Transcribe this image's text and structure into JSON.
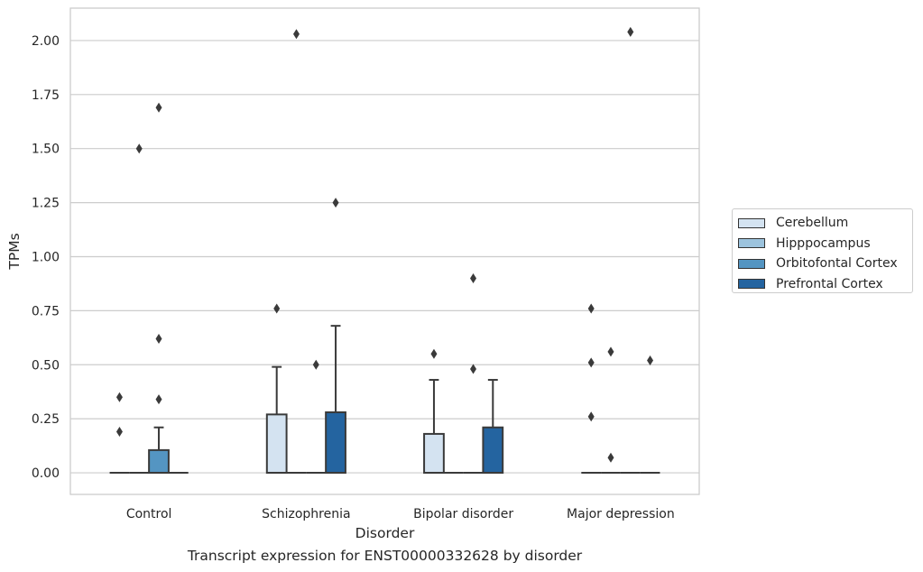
{
  "caption": "Transcript expression for ENST00000332628 by disorder",
  "chart_data": {
    "type": "box",
    "xlabel": "Disorder",
    "ylabel": "TPMs",
    "ylim": [
      -0.1,
      2.15
    ],
    "yticks": [
      0.0,
      0.25,
      0.5,
      0.75,
      1.0,
      1.25,
      1.5,
      1.75,
      2.0
    ],
    "ytick_labels": [
      "0.00",
      "0.25",
      "0.50",
      "0.75",
      "1.00",
      "1.25",
      "1.50",
      "1.75",
      "2.00"
    ],
    "grid": "horizontal",
    "legend_position": "right-center",
    "categories": [
      "Control",
      "Schizophrenia",
      "Bipolar disorder",
      "Major depression"
    ],
    "series": [
      {
        "name": "Cerebellum",
        "color": "#d4e3f1",
        "boxes": [
          {
            "q1": 0,
            "median": 0,
            "q3": 0,
            "whislo": 0,
            "whishi": 0,
            "fliers": [
              0.19,
              0.35
            ]
          },
          {
            "q1": 0,
            "median": 0,
            "q3": 0.27,
            "whislo": 0,
            "whishi": 0.49,
            "fliers": [
              0.76
            ]
          },
          {
            "q1": 0,
            "median": 0,
            "q3": 0.18,
            "whislo": 0,
            "whishi": 0.43,
            "fliers": [
              0.55
            ]
          },
          {
            "q1": 0,
            "median": 0,
            "q3": 0,
            "whislo": 0,
            "whishi": 0,
            "fliers": [
              0.26,
              0.51,
              0.76
            ]
          }
        ]
      },
      {
        "name": "Hipppocampus",
        "color": "#9cc3dd",
        "boxes": [
          {
            "q1": 0,
            "median": 0,
            "q3": 0,
            "whislo": 0,
            "whishi": 0,
            "fliers": [
              1.5
            ]
          },
          {
            "q1": 0,
            "median": 0,
            "q3": 0,
            "whislo": 0,
            "whishi": 0,
            "fliers": [
              2.03
            ]
          },
          {
            "q1": 0,
            "median": 0,
            "q3": 0,
            "whislo": 0,
            "whishi": 0,
            "fliers": []
          },
          {
            "q1": 0,
            "median": 0,
            "q3": 0,
            "whislo": 0,
            "whishi": 0,
            "fliers": [
              0.07,
              0.56
            ]
          }
        ]
      },
      {
        "name": "Orbitofontal Cortex",
        "color": "#5495c2",
        "boxes": [
          {
            "q1": 0,
            "median": 0,
            "q3": 0.105,
            "whislo": 0,
            "whishi": 0.21,
            "fliers": [
              0.34,
              0.62,
              1.69
            ]
          },
          {
            "q1": 0,
            "median": 0,
            "q3": 0,
            "whislo": 0,
            "whishi": 0,
            "fliers": [
              0.5
            ]
          },
          {
            "q1": 0,
            "median": 0,
            "q3": 0,
            "whislo": 0,
            "whishi": 0,
            "fliers": [
              0.48,
              0.9
            ]
          },
          {
            "q1": 0,
            "median": 0,
            "q3": 0,
            "whislo": 0,
            "whishi": 0,
            "fliers": [
              2.04
            ]
          }
        ]
      },
      {
        "name": "Prefrontal Cortex",
        "color": "#2464a0",
        "boxes": [
          {
            "q1": 0,
            "median": 0,
            "q3": 0,
            "whislo": 0,
            "whishi": 0,
            "fliers": []
          },
          {
            "q1": 0,
            "median": 0,
            "q3": 0.28,
            "whislo": 0,
            "whishi": 0.68,
            "fliers": [
              1.25
            ]
          },
          {
            "q1": 0,
            "median": 0,
            "q3": 0.21,
            "whislo": 0,
            "whishi": 0.43,
            "fliers": []
          },
          {
            "q1": 0,
            "median": 0,
            "q3": 0,
            "whislo": 0,
            "whishi": 0,
            "fliers": [
              0.52
            ]
          }
        ]
      }
    ]
  }
}
